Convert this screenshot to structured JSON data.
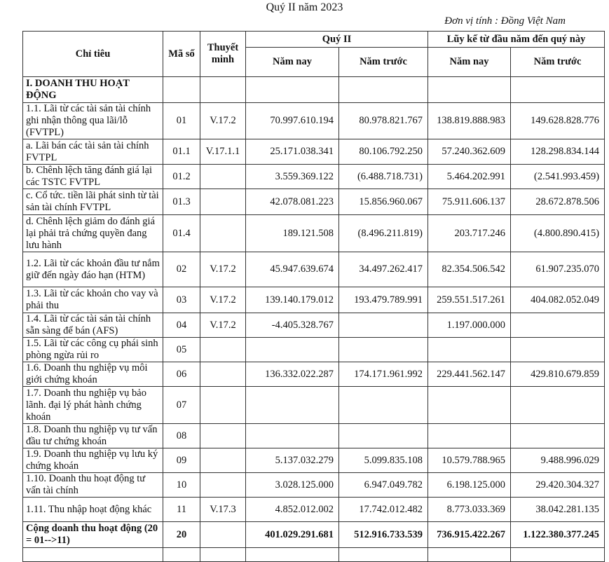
{
  "header": {
    "title": "Quý II năm 2023",
    "unit": "Đơn vị tính : Đồng Việt Nam"
  },
  "table": {
    "header": {
      "indicator": "Chỉ tiêu",
      "code": "Mã số",
      "note": "Thuyết minh",
      "quarter": "Quý II",
      "ytd": "Lũy kế từ đầu năm đến quý này",
      "sub": [
        "Năm nay",
        "Năm trước",
        "Năm nay",
        "Năm trước"
      ]
    },
    "rows": [
      [
        "I. DOANH THU HOẠT ĐỘNG",
        null,
        null,
        null,
        null,
        null,
        null
      ],
      [
        "1.1. Lãi từ các tài sản tài chính ghi nhận thông qua lãi/lỗ (FVTPL)",
        "01",
        "V.17.2",
        "70.997.610.194",
        "80.978.821.767",
        "138.819.888.983",
        "149.628.828.776"
      ],
      [
        "a. Lãi bán các tài sản tài chính FVTPL",
        "01.1",
        "V.17.1.1",
        "25.171.038.341",
        "80.106.792.250",
        "57.240.362.609",
        "128.298.834.144"
      ],
      [
        "b. Chênh lệch tăng đánh giá lại các TSTC FVTPL",
        "01.2",
        null,
        "3.559.369.122",
        "(6.488.718.731)",
        "5.464.202.991",
        "(2.541.993.459)"
      ],
      [
        "c. Cổ tức. tiền lãi phát sinh từ tài sản tài chính FVTPL",
        "01.3",
        null,
        "42.078.081.223",
        "15.856.960.067",
        "75.911.606.137",
        "28.672.878.506"
      ],
      [
        "d. Chênh lệch giảm do đánh giá lại phải trả chứng quyền đang lưu hành",
        "01.4",
        null,
        "189.121.508",
        "(8.496.211.819)",
        "203.717.246",
        "(4.800.890.415)"
      ],
      [
        "1.2. Lãi từ các khoản đầu tư nắm giữ đến ngày đáo hạn (HTM)",
        "02",
        "V.17.2",
        "45.947.639.674",
        "34.497.262.417",
        "82.354.506.542",
        "61.907.235.070"
      ],
      [
        "1.3. Lãi từ các khoản cho vay và phải thu",
        "03",
        "V.17.2",
        "139.140.179.012",
        "193.479.789.991",
        "259.551.517.261",
        "404.082.052.049"
      ],
      [
        "1.4. Lãi từ các tài sản tài chính sẵn sàng để bán (AFS)",
        "04",
        "V.17.2",
        "-4.405.328.767",
        null,
        "1.197.000.000",
        null
      ],
      [
        "1.5. Lãi từ các công cụ phái sinh phòng ngừa rủi ro",
        "05",
        null,
        null,
        null,
        null,
        null
      ],
      [
        "1.6. Doanh thu nghiệp vụ môi giới chứng khoán",
        "06",
        null,
        "136.332.022.287",
        "174.171.961.992",
        "229.441.562.147",
        "429.810.679.859"
      ],
      [
        "1.7. Doanh thu nghiệp vụ bảo lãnh. đại lý phát hành chứng khoán",
        "07",
        null,
        null,
        null,
        null,
        null
      ],
      [
        "1.8. Doanh thu nghiệp vụ tư vấn đầu tư chứng khoán",
        "08",
        null,
        null,
        null,
        null,
        null
      ],
      [
        "1.9. Doanh thu nghiệp vụ lưu ký chứng khoán",
        "09",
        null,
        "5.137.032.279",
        "5.099.835.108",
        "10.579.788.965",
        "9.488.996.029"
      ],
      [
        "1.10. Doanh thu hoạt động tư vấn tài chính",
        "10",
        null,
        "3.028.125.000",
        "6.947.049.782",
        "6.198.125.000",
        "29.420.304.327"
      ],
      [
        "1.11. Thu nhập hoạt động khác",
        "11",
        "V.17.3",
        "4.852.012.002",
        "17.742.012.482",
        "8.773.033.369",
        "38.042.281.135"
      ],
      [
        "Cộng doanh thu hoạt động (20 = 01-->11)",
        "20",
        null,
        "401.029.291.681",
        "512.916.733.539",
        "736.915.422.267",
        "1.122.380.377.245"
      ]
    ]
  }
}
